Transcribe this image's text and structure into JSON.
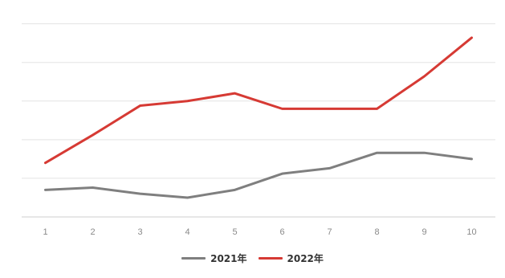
{
  "chart_data": {
    "type": "line",
    "x": [
      1,
      2,
      3,
      4,
      5,
      6,
      7,
      8,
      9,
      10
    ],
    "ylim": [
      0,
      260
    ],
    "y_gridlines": [
      0,
      50,
      100,
      150,
      200,
      250
    ],
    "grid": true,
    "legend_position": "bottom-center",
    "series": [
      {
        "name": "2021年",
        "color": "#7f7f7f",
        "values": [
          35,
          38,
          30,
          25,
          35,
          56,
          63,
          83,
          83,
          75
        ]
      },
      {
        "name": "2022年",
        "color": "#d63a34",
        "values": [
          70,
          106,
          144,
          150,
          160,
          140,
          140,
          140,
          182,
          232
        ]
      }
    ]
  }
}
